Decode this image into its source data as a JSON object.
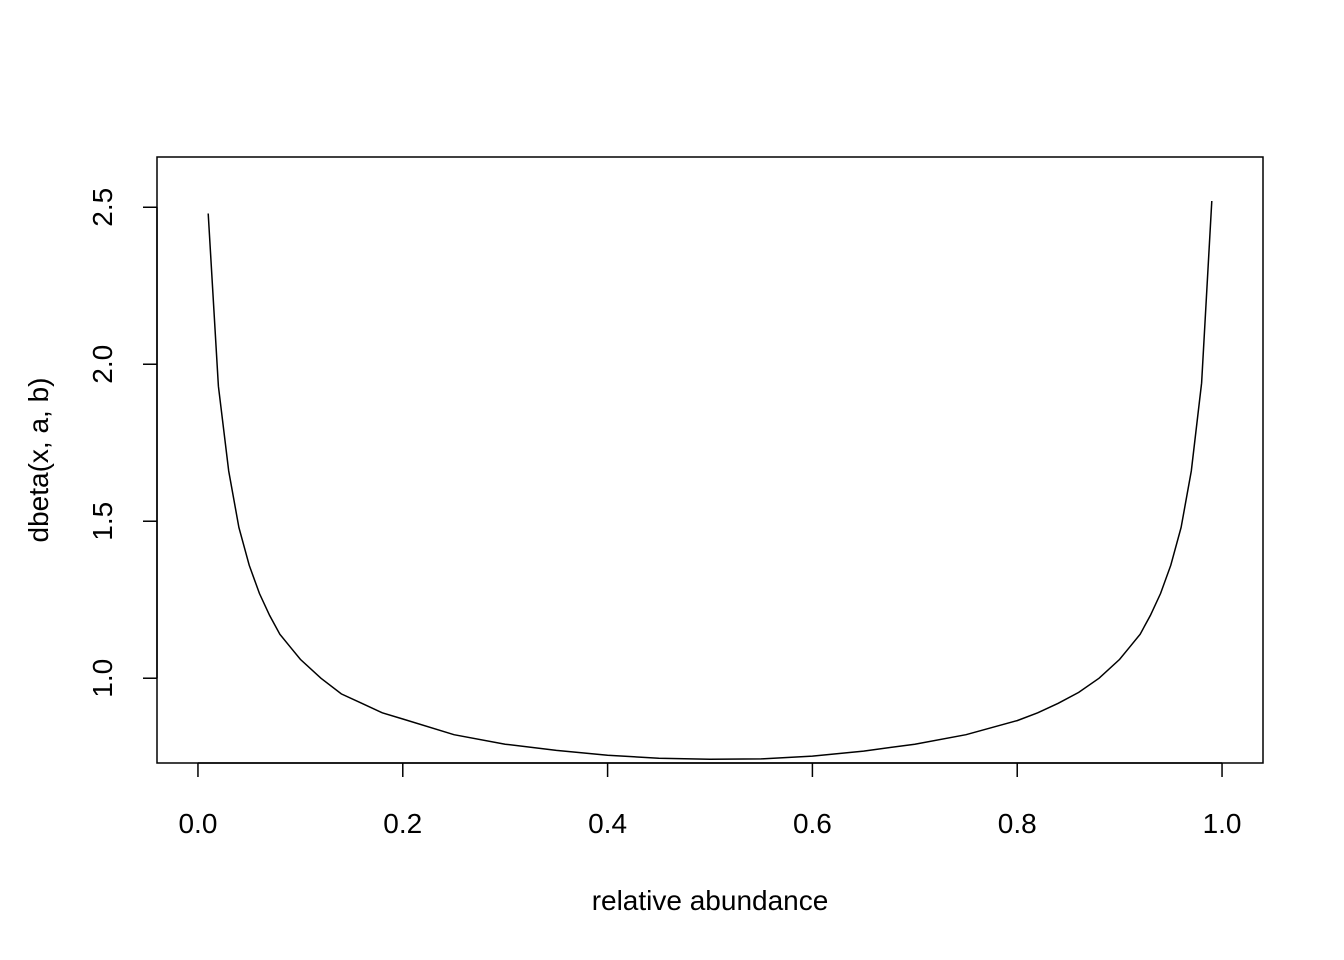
{
  "chart_data": {
    "type": "line",
    "title": "",
    "xlabel": "relative abundance",
    "ylabel": "dbeta(x, a, b)",
    "xlim": [
      -0.04,
      1.04
    ],
    "ylim": [
      0.73,
      2.66
    ],
    "xticks": [
      0.0,
      0.2,
      0.4,
      0.6,
      0.8,
      1.0
    ],
    "xtick_labels": [
      "0.0",
      "0.2",
      "0.4",
      "0.6",
      "0.8",
      "1.0"
    ],
    "yticks": [
      1.0,
      1.5,
      2.0,
      2.5
    ],
    "ytick_labels": [
      "1.0",
      "1.5",
      "2.0",
      "2.5"
    ],
    "grid": false,
    "legend": false,
    "line_color": "#000000",
    "series": [
      {
        "x": [
          0.01,
          0.02,
          0.03,
          0.04,
          0.05,
          0.06,
          0.07,
          0.08,
          0.09,
          0.1,
          0.12,
          0.14,
          0.16,
          0.18,
          0.2,
          0.25,
          0.3,
          0.35,
          0.4,
          0.45,
          0.5,
          0.55,
          0.6,
          0.65,
          0.7,
          0.75,
          0.8,
          0.82,
          0.84,
          0.86,
          0.88,
          0.9,
          0.91,
          0.92,
          0.93,
          0.94,
          0.95,
          0.96,
          0.97,
          0.98,
          0.99
        ],
        "y": [
          2.48,
          1.93,
          1.66,
          1.48,
          1.36,
          1.27,
          1.2,
          1.14,
          1.1,
          1.06,
          1.0,
          0.95,
          0.92,
          0.89,
          0.87,
          0.82,
          0.79,
          0.77,
          0.755,
          0.745,
          0.742,
          0.743,
          0.752,
          0.768,
          0.79,
          0.82,
          0.865,
          0.89,
          0.92,
          0.955,
          1.0,
          1.06,
          1.1,
          1.14,
          1.2,
          1.27,
          1.36,
          1.48,
          1.66,
          1.94,
          2.52
        ]
      }
    ]
  }
}
